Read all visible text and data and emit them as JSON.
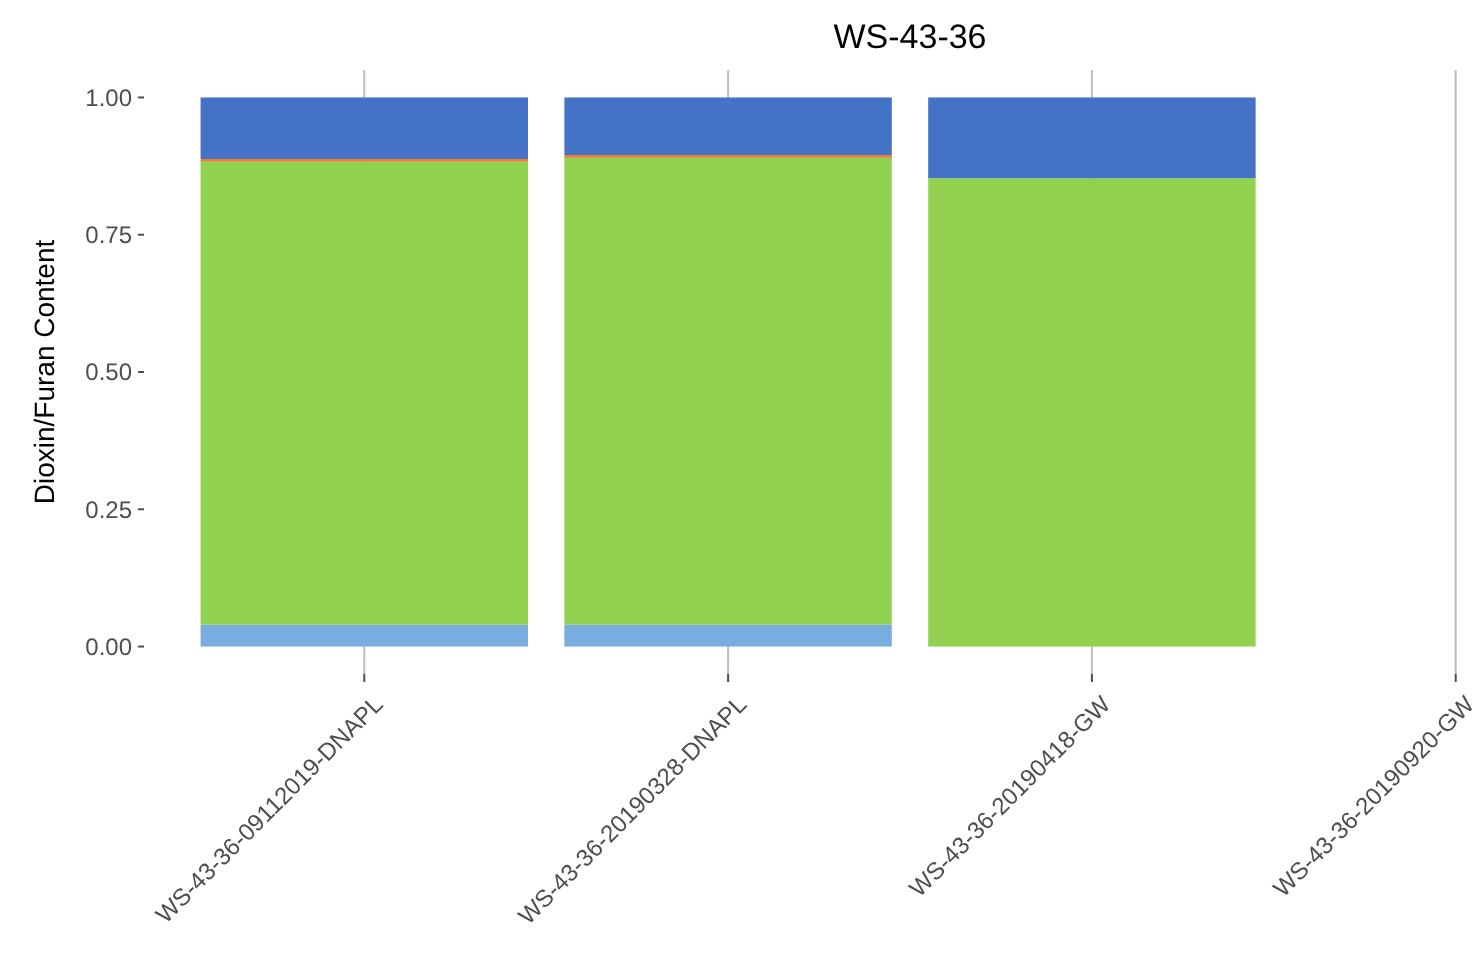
{
  "chart_data": {
    "type": "bar",
    "title": "WS-43-36",
    "ylabel": "Dioxin/Furan Content",
    "categories": [
      "WS-43-36-09112019-DNAPL",
      "WS-43-36-20190328-DNAPL",
      "WS-43-36-20190418-GW",
      "WS-43-36-20190920-GW"
    ],
    "series": [
      {
        "color": "#7aaddf",
        "values": [
          0.04,
          0.04,
          0,
          null
        ]
      },
      {
        "color": "#92d050",
        "values": [
          0.843,
          0.85,
          0.853,
          null
        ]
      },
      {
        "color": "#ed7d31",
        "values": [
          0.005,
          0.005,
          0,
          null
        ]
      },
      {
        "color": "#4472c4",
        "values": [
          0.112,
          0.105,
          0.147,
          null
        ]
      }
    ],
    "stacked": true,
    "ylim": [
      -0.05,
      1.05
    ],
    "yticks": [
      {
        "value": 0,
        "label": "0.00"
      },
      {
        "value": 0.25,
        "label": "0.25"
      },
      {
        "value": 0.5,
        "label": "0.50"
      },
      {
        "value": 0.75,
        "label": "0.75"
      },
      {
        "value": 1,
        "label": "1.00"
      }
    ],
    "grid": "x"
  }
}
